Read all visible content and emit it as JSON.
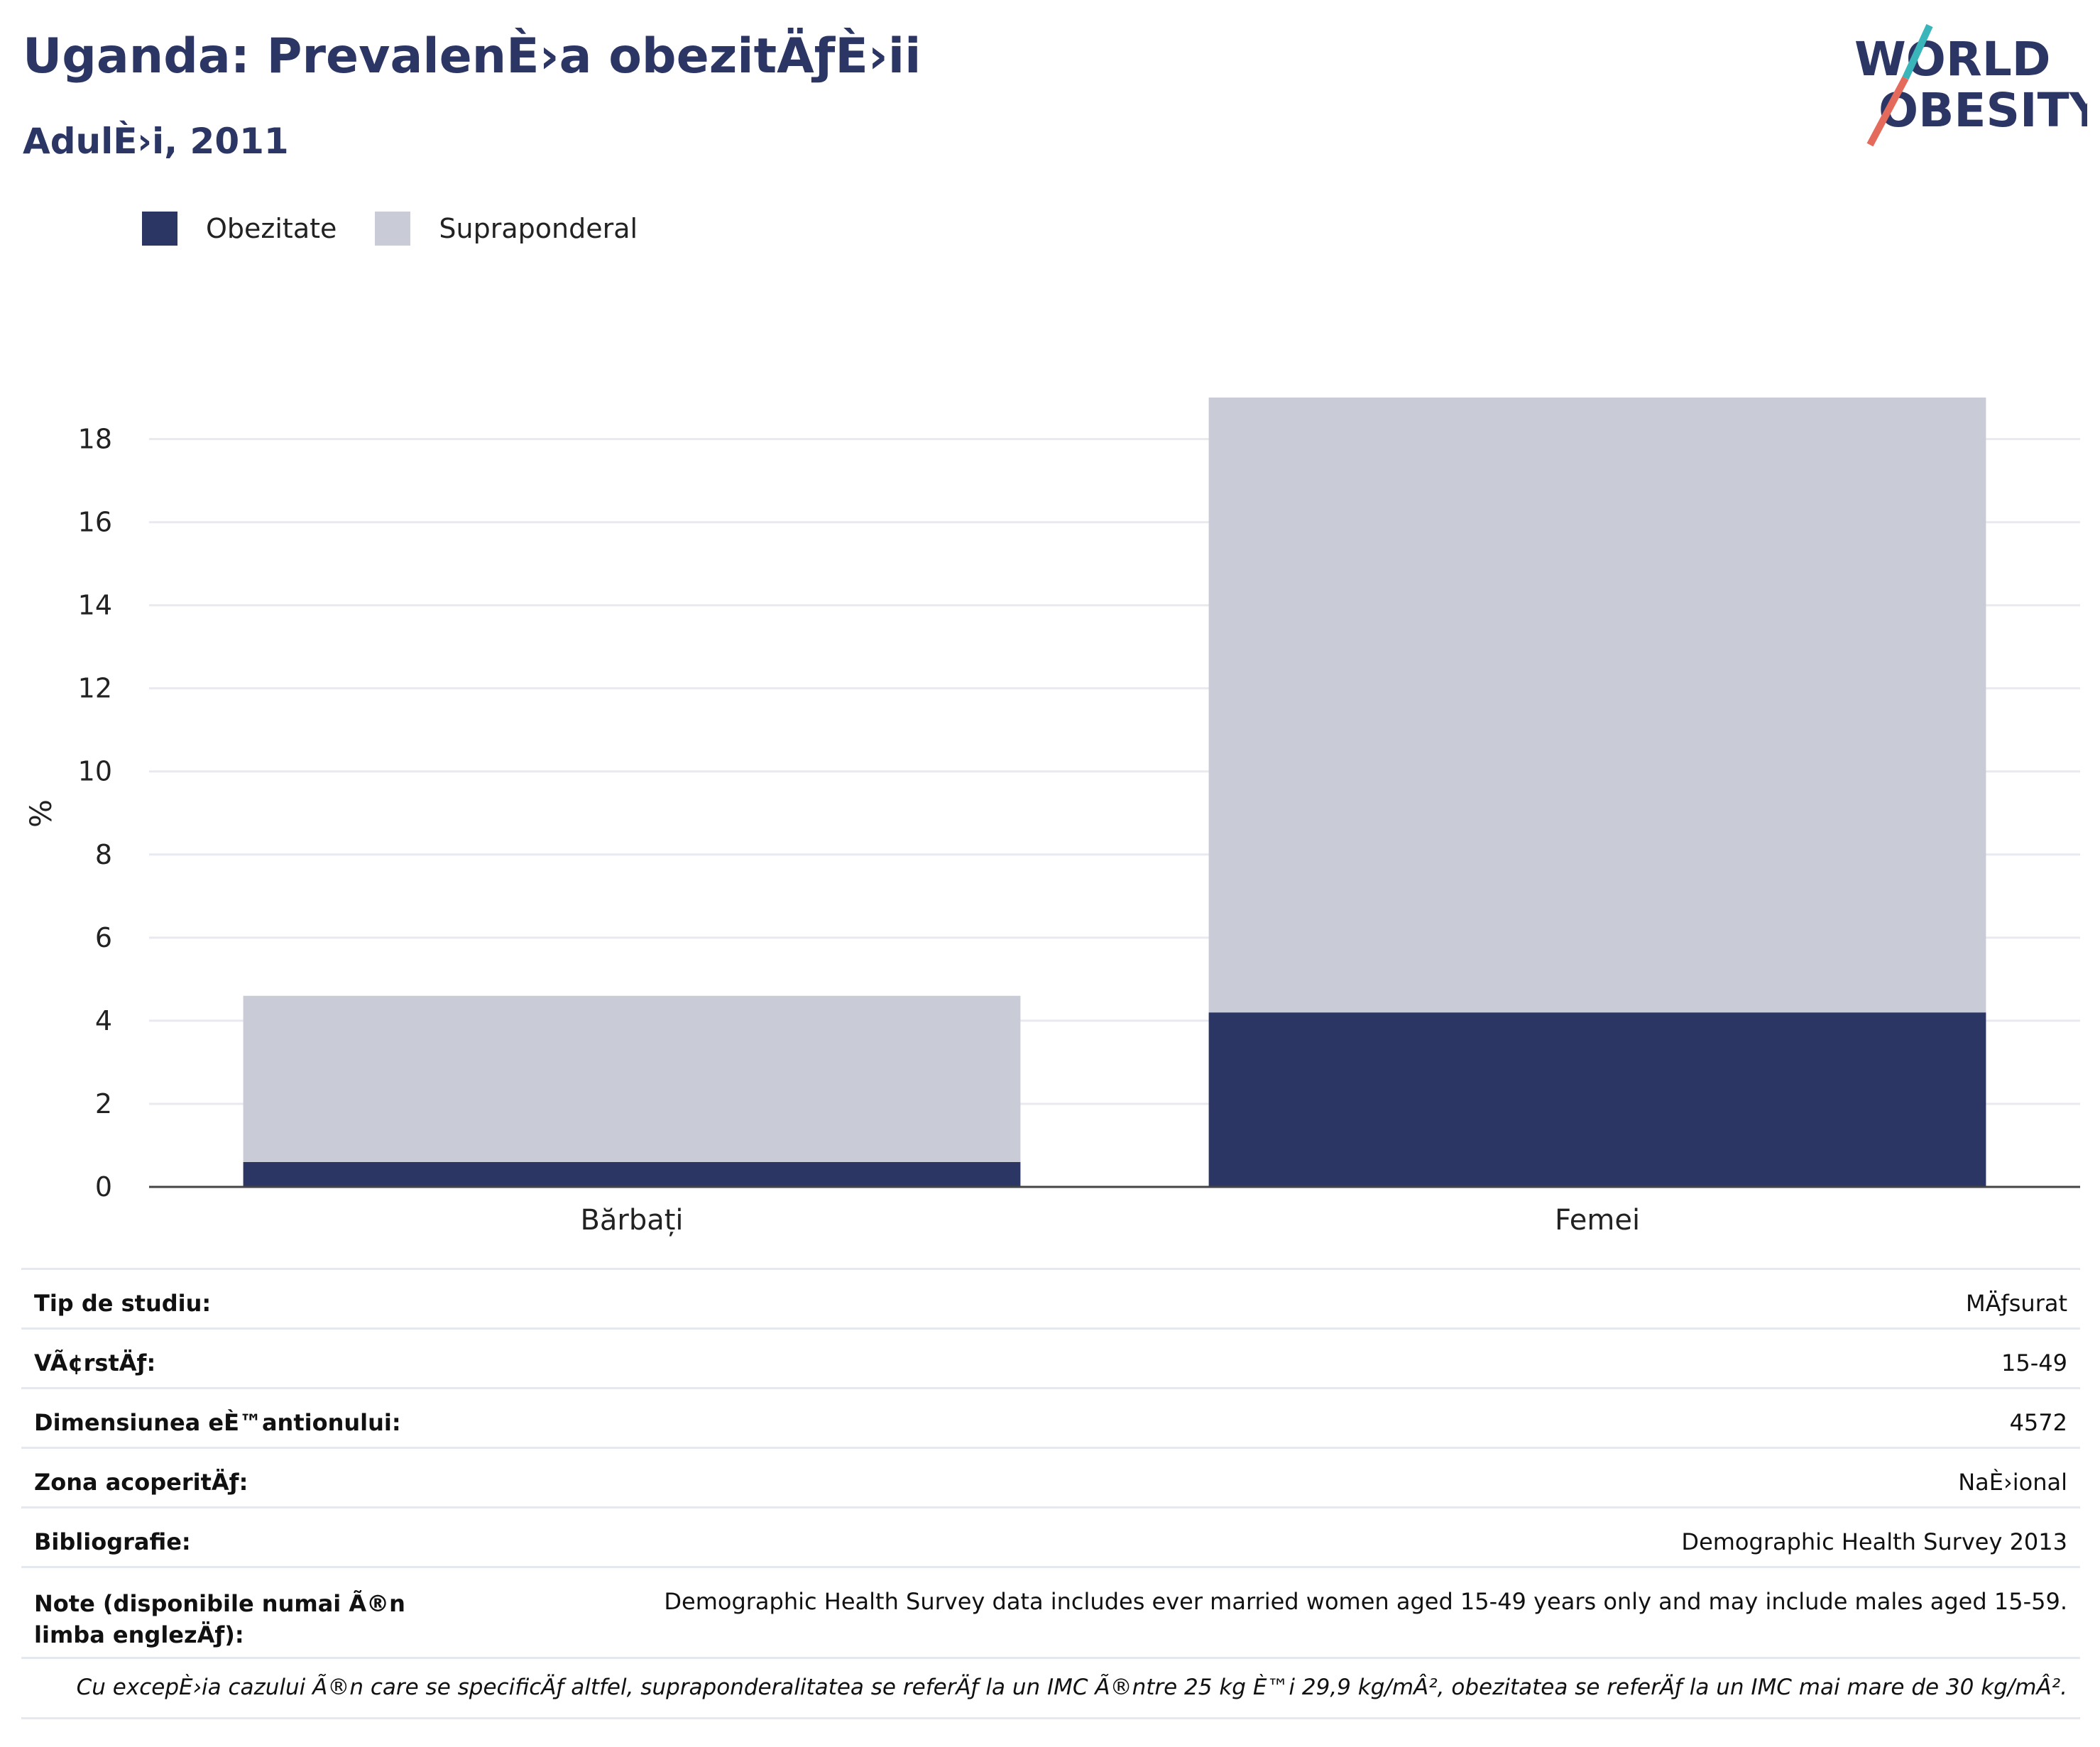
{
  "header": {
    "title": "Uganda: PrevalenÈ›a obezitÄƒÈ›ii",
    "subtitle": "AdulÈ›i, 2011"
  },
  "logo": {
    "line1": "WORLD",
    "line2": "OBESITY"
  },
  "colors": {
    "obesity": "#2b3664",
    "overweight": "#c9ccd7",
    "accent_teal": "#3ab5b9",
    "accent_red": "#e46b5b"
  },
  "chart_data": {
    "type": "bar",
    "stacked": true,
    "categories": [
      "Bărbați",
      "Femei"
    ],
    "series": [
      {
        "name": "Obezitate",
        "values": [
          0.6,
          4.2
        ]
      },
      {
        "name": "Supraponderal",
        "values": [
          4.0,
          14.8
        ]
      }
    ],
    "ylabel": "%",
    "ylim": [
      0,
      19
    ],
    "yticks": [
      0,
      2,
      4,
      6,
      8,
      10,
      12,
      14,
      16,
      18
    ],
    "grid": true,
    "legend_position": "top-left"
  },
  "info": {
    "rows": [
      {
        "label": "Tip de studiu:",
        "value": "MÄƒsurat"
      },
      {
        "label": "VÃ¢rstÄƒ:",
        "value": "15-49"
      },
      {
        "label": "Dimensiunea eÈ™antionului:",
        "value": "4572"
      },
      {
        "label": "Zona acoperitÄƒ:",
        "value": "NaÈ›ional"
      },
      {
        "label": "Bibliografie:",
        "value": "Demographic Health Survey 2013"
      },
      {
        "label": "Note (disponibile numai Ã®n limba englezÄƒ):",
        "value": "Demographic Health Survey data includes ever married women aged 15-49 years only and may include males aged 15-59."
      }
    ],
    "footnote": "Cu excepÈ›ia cazului Ã®n care se specificÄƒ altfel, supraponderalitatea se referÄƒ la un IMC Ã®ntre 25 kg È™i 29,9 kg/mÂ², obezitatea se referÄƒ la un IMC mai mare de 30 kg/mÂ²."
  }
}
